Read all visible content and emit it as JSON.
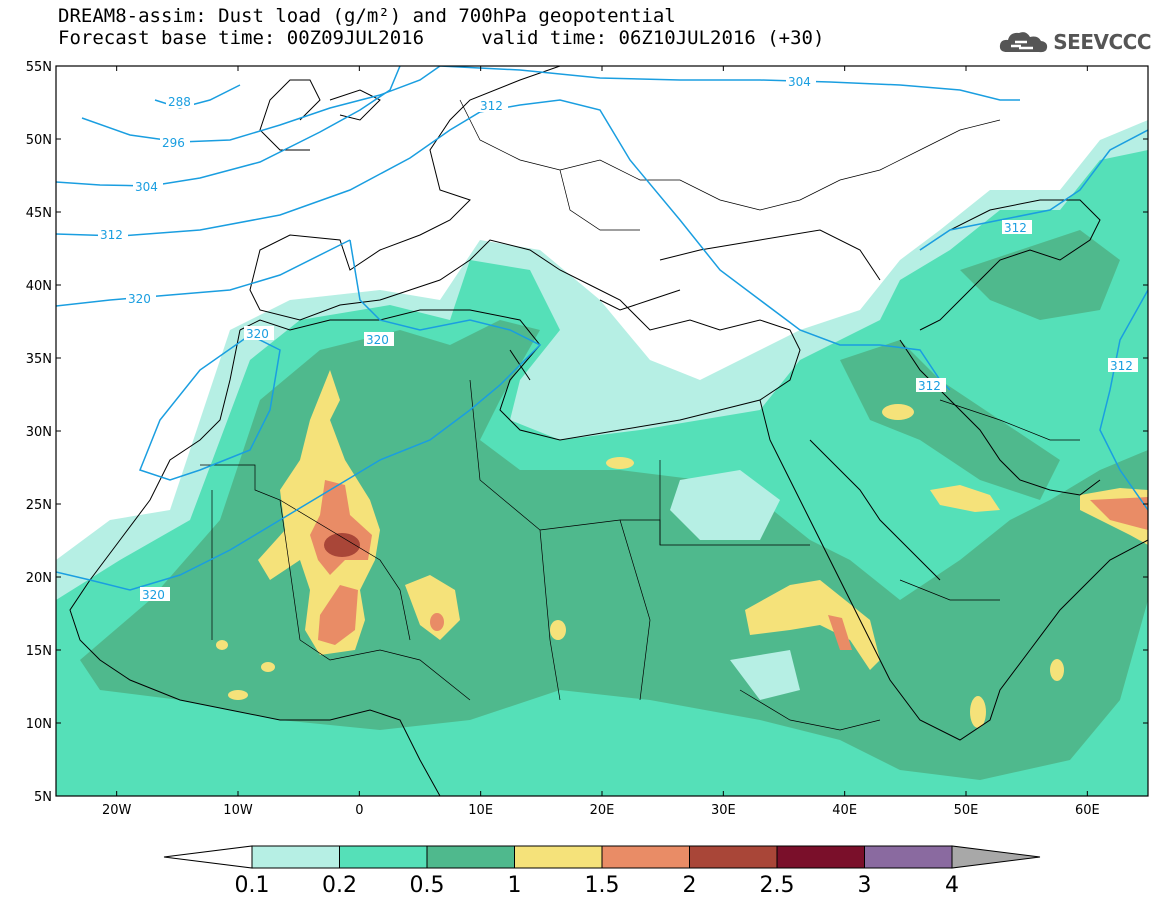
{
  "title": {
    "line1": "DREAM8-assim: Dust load (g/m²) and 700hPa geopotential",
    "line2": "Forecast base time: 00Z09JUL2016     valid time: 06Z10JUL2016 (+30)"
  },
  "logo": {
    "text": "SEEVCCC",
    "icon": "cloud-icon"
  },
  "map": {
    "lat_ticks": [
      "55N",
      "50N",
      "45N",
      "40N",
      "35N",
      "30N",
      "25N",
      "20N",
      "15N",
      "10N",
      "5N"
    ],
    "lon_ticks": [
      "20W",
      "10W",
      "0",
      "10E",
      "20E",
      "30E",
      "40E",
      "50E",
      "60E"
    ],
    "lon_range": [
      -25,
      65
    ],
    "lat_range": [
      5,
      55
    ],
    "contour_labels": [
      "288",
      "296",
      "304",
      "312",
      "320",
      "320",
      "320",
      "320",
      "304",
      "312",
      "312",
      "312",
      "312"
    ]
  },
  "colorbar": {
    "labels": [
      "0.1",
      "0.2",
      "0.5",
      "1",
      "1.5",
      "2",
      "2.5",
      "3",
      "4"
    ],
    "colors": [
      "#b6efe4",
      "#55e0b8",
      "#4fb98d",
      "#f5e27a",
      "#e98c66",
      "#a94638",
      "#7a0f2a",
      "#8a6aa0"
    ],
    "under_color": "#ffffff",
    "over_color": "#a8a8a8"
  },
  "colors": {
    "contour": "#1a9ee0",
    "light": "#b6efe4",
    "mid": "#55e0b8",
    "dark": "#4fb98d",
    "yellow": "#f5e27a",
    "orange": "#e98c66",
    "red": "#a94638"
  }
}
